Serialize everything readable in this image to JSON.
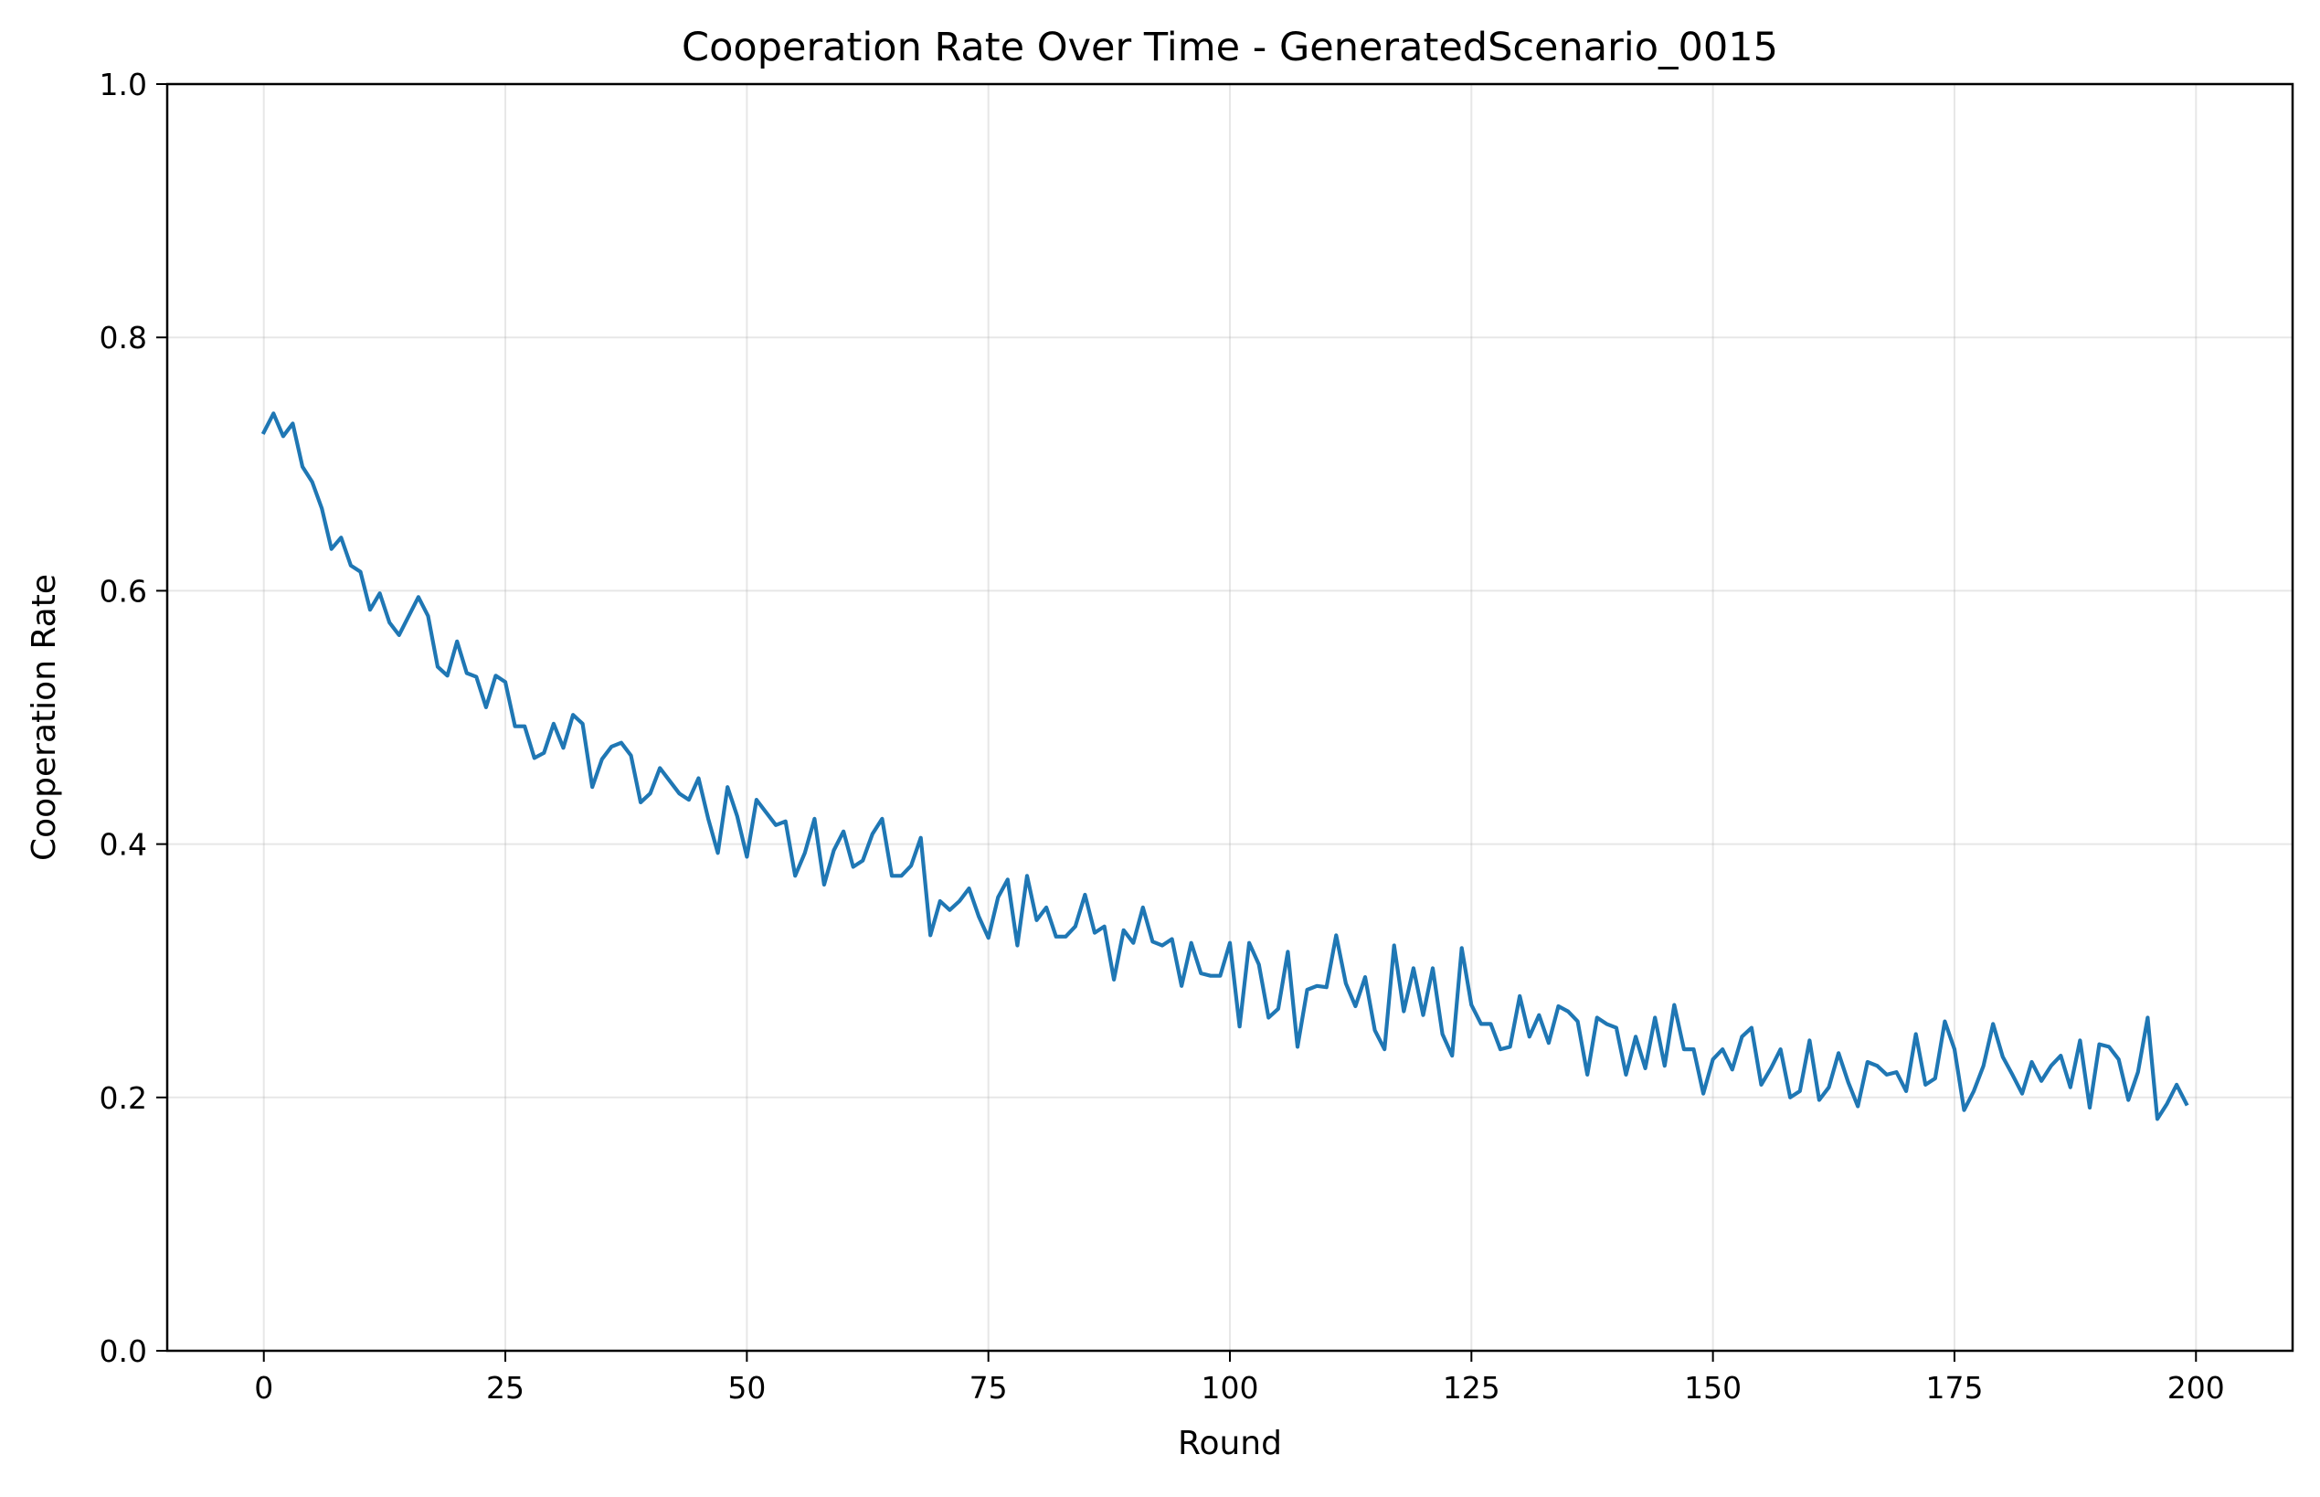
{
  "chart_data": {
    "type": "line",
    "title": "Cooperation Rate Over Time - GeneratedScenario_0015",
    "xlabel": "Round",
    "ylabel": "Cooperation Rate",
    "xlim": [
      -10,
      210
    ],
    "ylim": [
      0.0,
      1.0
    ],
    "xticks": [
      0,
      25,
      50,
      75,
      100,
      125,
      150,
      175,
      200
    ],
    "xtick_labels": [
      "0",
      "25",
      "50",
      "75",
      "100",
      "125",
      "150",
      "175",
      "200"
    ],
    "yticks": [
      0.0,
      0.2,
      0.4,
      0.6,
      0.8,
      1.0
    ],
    "ytick_labels": [
      "0.0",
      "0.2",
      "0.4",
      "0.6",
      "0.8",
      "1.0"
    ],
    "grid": true,
    "line_color": "#1f77b4",
    "x": [
      0,
      1,
      2,
      3,
      4,
      5,
      6,
      7,
      8,
      9,
      10,
      11,
      12,
      13,
      14,
      15,
      16,
      17,
      18,
      19,
      20,
      21,
      22,
      23,
      24,
      25,
      26,
      27,
      28,
      29,
      30,
      31,
      32,
      33,
      34,
      35,
      36,
      37,
      38,
      39,
      40,
      41,
      42,
      43,
      44,
      45,
      46,
      47,
      48,
      49,
      50,
      51,
      52,
      53,
      54,
      55,
      56,
      57,
      58,
      59,
      60,
      61,
      62,
      63,
      64,
      65,
      66,
      67,
      68,
      69,
      70,
      71,
      72,
      73,
      74,
      75,
      76,
      77,
      78,
      79,
      80,
      81,
      82,
      83,
      84,
      85,
      86,
      87,
      88,
      89,
      90,
      91,
      92,
      93,
      94,
      95,
      96,
      97,
      98,
      99,
      100,
      101,
      102,
      103,
      104,
      105,
      106,
      107,
      108,
      109,
      110,
      111,
      112,
      113,
      114,
      115,
      116,
      117,
      118,
      119,
      120,
      121,
      122,
      123,
      124,
      125,
      126,
      127,
      128,
      129,
      130,
      131,
      132,
      133,
      134,
      135,
      136,
      137,
      138,
      139,
      140,
      141,
      142,
      143,
      144,
      145,
      146,
      147,
      148,
      149,
      150,
      151,
      152,
      153,
      154,
      155,
      156,
      157,
      158,
      159,
      160,
      161,
      162,
      163,
      164,
      165,
      166,
      167,
      168,
      169,
      170,
      171,
      172,
      173,
      174,
      175,
      176,
      177,
      178,
      179,
      180,
      181,
      182,
      183,
      184,
      185,
      186,
      187,
      188,
      189,
      190,
      191,
      192,
      193,
      194,
      195,
      196,
      197,
      198,
      199
    ],
    "y": [
      0.725,
      0.74,
      0.722,
      0.732,
      0.698,
      0.686,
      0.665,
      0.633,
      0.642,
      0.62,
      0.615,
      0.585,
      0.598,
      0.575,
      0.565,
      0.58,
      0.595,
      0.58,
      0.54,
      0.533,
      0.56,
      0.535,
      0.532,
      0.508,
      0.533,
      0.528,
      0.493,
      0.493,
      0.468,
      0.472,
      0.495,
      0.476,
      0.502,
      0.495,
      0.445,
      0.467,
      0.477,
      0.48,
      0.47,
      0.433,
      0.44,
      0.46,
      0.45,
      0.44,
      0.435,
      0.452,
      0.42,
      0.393,
      0.445,
      0.422,
      0.39,
      0.435,
      0.425,
      0.415,
      0.418,
      0.375,
      0.393,
      0.42,
      0.368,
      0.395,
      0.41,
      0.382,
      0.387,
      0.408,
      0.42,
      0.375,
      0.375,
      0.383,
      0.405,
      0.328,
      0.355,
      0.348,
      0.355,
      0.365,
      0.343,
      0.326,
      0.358,
      0.372,
      0.32,
      0.375,
      0.34,
      0.35,
      0.327,
      0.327,
      0.335,
      0.36,
      0.33,
      0.335,
      0.293,
      0.332,
      0.322,
      0.35,
      0.323,
      0.32,
      0.325,
      0.288,
      0.322,
      0.298,
      0.296,
      0.296,
      0.322,
      0.256,
      0.322,
      0.305,
      0.263,
      0.27,
      0.315,
      0.24,
      0.285,
      0.288,
      0.287,
      0.328,
      0.29,
      0.272,
      0.295,
      0.253,
      0.238,
      0.32,
      0.268,
      0.302,
      0.265,
      0.302,
      0.25,
      0.233,
      0.318,
      0.273,
      0.258,
      0.258,
      0.238,
      0.24,
      0.28,
      0.248,
      0.265,
      0.243,
      0.272,
      0.268,
      0.26,
      0.218,
      0.263,
      0.258,
      0.255,
      0.218,
      0.248,
      0.223,
      0.263,
      0.225,
      0.273,
      0.238,
      0.238,
      0.203,
      0.23,
      0.238,
      0.222,
      0.248,
      0.255,
      0.21,
      0.223,
      0.238,
      0.2,
      0.205,
      0.245,
      0.198,
      0.208,
      0.235,
      0.212,
      0.193,
      0.228,
      0.225,
      0.218,
      0.22,
      0.205,
      0.25,
      0.21,
      0.215,
      0.26,
      0.238,
      0.19,
      0.205,
      0.225,
      0.258,
      0.232,
      0.218,
      0.203,
      0.228,
      0.213,
      0.225,
      0.233,
      0.208,
      0.245,
      0.192,
      0.242,
      0.24,
      0.23,
      0.198,
      0.22,
      0.263,
      0.183,
      0.195,
      0.21,
      0.195
    ]
  }
}
